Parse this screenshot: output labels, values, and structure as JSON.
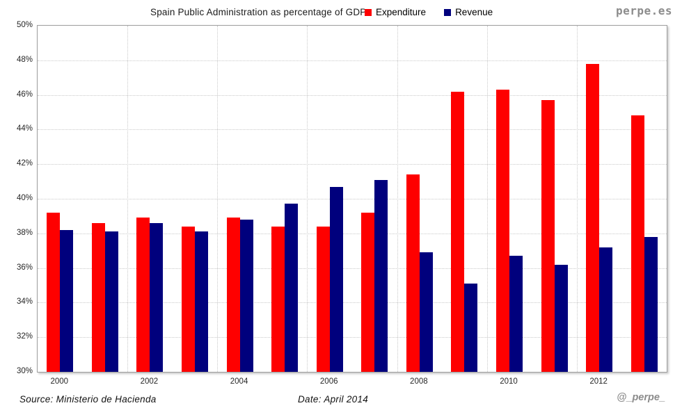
{
  "header": {
    "title": "Spain Public Administration as percentage of GDP"
  },
  "watermark": {
    "site": "perpe.es",
    "handle": "@_perpe_"
  },
  "footer": {
    "source": "Source: Ministerio de Hacienda",
    "date": "Date: April 2014"
  },
  "chart_data": {
    "type": "bar",
    "title": "Spain Public Administration as percentage of GDP",
    "categories": [
      "2000",
      "2001",
      "2002",
      "2003",
      "2004",
      "2005",
      "2006",
      "2007",
      "2008",
      "2009",
      "2010",
      "2011",
      "2012",
      "2013"
    ],
    "x_tick_labels": [
      "2000",
      "2002",
      "2004",
      "2006",
      "2008",
      "2010",
      "2012"
    ],
    "series": [
      {
        "name": "Expenditure",
        "color": "#fe0000",
        "values": [
          39.2,
          38.6,
          38.9,
          38.4,
          38.9,
          38.4,
          38.4,
          39.2,
          41.4,
          46.2,
          46.3,
          45.7,
          47.8,
          44.8
        ]
      },
      {
        "name": "Revenue",
        "color": "#00007d",
        "values": [
          38.2,
          38.1,
          38.6,
          38.1,
          38.8,
          39.7,
          40.7,
          41.1,
          36.9,
          35.1,
          36.7,
          36.2,
          37.2,
          37.8
        ]
      }
    ],
    "ylim": [
      30,
      50
    ],
    "ytick_step": 2,
    "ytick_suffix": "%",
    "grid": "dotted, horizontal every 2%, vertical every 2 years",
    "gridline_color": "#c9c9c9",
    "legend_position": "top",
    "xlabel": "",
    "ylabel": ""
  }
}
